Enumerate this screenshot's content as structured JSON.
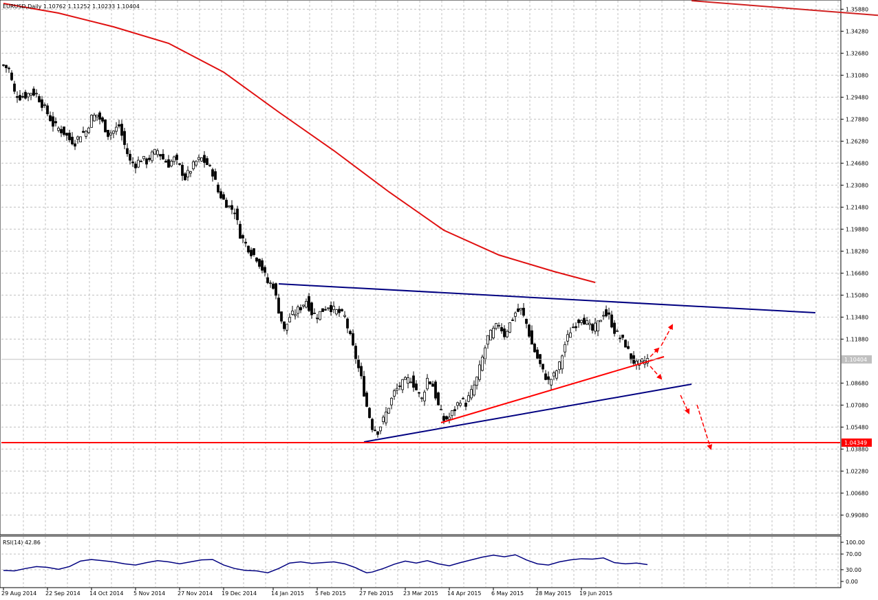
{
  "chart_data": {
    "type": "candlestick",
    "symbol_info": "EURUSD,Daily  1.10762 1.11252 1.10233 1.10404",
    "price_axis": {
      "ticks": [
        "1.35880",
        "1.34280",
        "1.32680",
        "1.31080",
        "1.29480",
        "1.27880",
        "1.26280",
        "1.24680",
        "1.23080",
        "1.21480",
        "1.19880",
        "1.18280",
        "1.16680",
        "1.15080",
        "1.13480",
        "1.11880",
        "1.08680",
        "1.07080",
        "1.05480",
        "1.03880",
        "1.02280",
        "1.00680",
        "0.99080"
      ],
      "tick_values": [
        1.3588,
        1.3428,
        1.3268,
        1.3108,
        1.2948,
        1.2788,
        1.2628,
        1.2468,
        1.2308,
        1.2148,
        1.1988,
        1.1828,
        1.1668,
        1.1508,
        1.1348,
        1.1188,
        1.0868,
        1.0708,
        1.0548,
        1.0388,
        1.0228,
        1.0068,
        0.9908
      ],
      "range": [
        0.977,
        1.365
      ],
      "current_price_label": "1.10404",
      "current_price": 1.10404,
      "support_label": "1.04349",
      "support_price": 1.04349
    },
    "time_axis": {
      "labels": [
        "29 Aug 2014",
        "22 Sep 2014",
        "14 Oct 2014",
        "5 Nov 2014",
        "27 Nov 2014",
        "19 Dec 2014",
        "14 Jan 2015",
        "5 Feb 2015",
        "27 Feb 2015",
        "23 Mar 2015",
        "14 Apr 2015",
        "6 May 2015",
        "28 May 2015",
        "19 Jun 2015"
      ],
      "label_bar_index": [
        0,
        16,
        32,
        48,
        64,
        80,
        98,
        114,
        130,
        146,
        162,
        178,
        194,
        210
      ],
      "total_bars": 300
    },
    "candles_close_path": [
      [
        0,
        1.318
      ],
      [
        2,
        1.315
      ],
      [
        4,
        1.298
      ],
      [
        6,
        1.295
      ],
      [
        8,
        1.296
      ],
      [
        10,
        1.2985
      ],
      [
        12,
        1.297
      ],
      [
        14,
        1.29
      ],
      [
        16,
        1.283
      ],
      [
        18,
        1.275
      ],
      [
        20,
        1.272
      ],
      [
        22,
        1.269
      ],
      [
        24,
        1.264
      ],
      [
        26,
        1.262
      ],
      [
        28,
        1.268
      ],
      [
        30,
        1.27
      ],
      [
        32,
        1.28
      ],
      [
        34,
        1.282
      ],
      [
        36,
        1.276
      ],
      [
        38,
        1.268
      ],
      [
        40,
        1.27
      ],
      [
        42,
        1.274
      ],
      [
        44,
        1.26
      ],
      [
        46,
        1.248
      ],
      [
        48,
        1.246
      ],
      [
        50,
        1.25
      ],
      [
        52,
        1.248
      ],
      [
        54,
        1.253
      ],
      [
        56,
        1.256
      ],
      [
        58,
        1.25
      ],
      [
        60,
        1.246
      ],
      [
        62,
        1.25
      ],
      [
        64,
        1.244
      ],
      [
        66,
        1.236
      ],
      [
        68,
        1.242
      ],
      [
        70,
        1.248
      ],
      [
        72,
        1.25
      ],
      [
        74,
        1.246
      ],
      [
        76,
        1.24
      ],
      [
        78,
        1.226
      ],
      [
        80,
        1.22
      ],
      [
        82,
        1.215
      ],
      [
        84,
        1.212
      ],
      [
        86,
        1.195
      ],
      [
        88,
        1.188
      ],
      [
        90,
        1.182
      ],
      [
        92,
        1.178
      ],
      [
        94,
        1.17
      ],
      [
        96,
        1.16
      ],
      [
        98,
        1.158
      ],
      [
        100,
        1.14
      ],
      [
        102,
        1.125
      ],
      [
        104,
        1.135
      ],
      [
        106,
        1.138
      ],
      [
        108,
        1.142
      ],
      [
        110,
        1.147
      ],
      [
        112,
        1.138
      ],
      [
        114,
        1.136
      ],
      [
        116,
        1.14
      ],
      [
        118,
        1.143
      ],
      [
        120,
        1.14
      ],
      [
        122,
        1.138
      ],
      [
        124,
        1.135
      ],
      [
        126,
        1.12
      ],
      [
        128,
        1.105
      ],
      [
        130,
        1.09
      ],
      [
        132,
        1.07
      ],
      [
        134,
        1.055
      ],
      [
        136,
        1.052
      ],
      [
        138,
        1.06
      ],
      [
        140,
        1.07
      ],
      [
        142,
        1.08
      ],
      [
        144,
        1.085
      ],
      [
        146,
        1.088
      ],
      [
        148,
        1.09
      ],
      [
        150,
        1.082
      ],
      [
        152,
        1.075
      ],
      [
        154,
        1.09
      ],
      [
        156,
        1.085
      ],
      [
        158,
        1.07
      ],
      [
        160,
        1.06
      ],
      [
        162,
        1.062
      ],
      [
        164,
        1.068
      ],
      [
        166,
        1.075
      ],
      [
        168,
        1.072
      ],
      [
        170,
        1.08
      ],
      [
        172,
        1.09
      ],
      [
        174,
        1.105
      ],
      [
        176,
        1.12
      ],
      [
        178,
        1.125
      ],
      [
        180,
        1.13
      ],
      [
        182,
        1.122
      ],
      [
        184,
        1.13
      ],
      [
        186,
        1.138
      ],
      [
        188,
        1.14
      ],
      [
        190,
        1.13
      ],
      [
        192,
        1.115
      ],
      [
        194,
        1.105
      ],
      [
        196,
        1.095
      ],
      [
        198,
        1.088
      ],
      [
        200,
        1.092
      ],
      [
        202,
        1.1
      ],
      [
        204,
        1.115
      ],
      [
        206,
        1.125
      ],
      [
        208,
        1.13
      ],
      [
        210,
        1.135
      ],
      [
        212,
        1.13
      ],
      [
        214,
        1.125
      ],
      [
        216,
        1.13
      ],
      [
        218,
        1.138
      ],
      [
        220,
        1.135
      ],
      [
        222,
        1.125
      ],
      [
        224,
        1.12
      ],
      [
        226,
        1.115
      ],
      [
        228,
        1.105
      ],
      [
        230,
        1.1
      ],
      [
        232,
        1.102
      ],
      [
        234,
        1.104
      ]
    ],
    "moving_average": [
      [
        0,
        1.363
      ],
      [
        20,
        1.356
      ],
      [
        40,
        1.346
      ],
      [
        60,
        1.334
      ],
      [
        80,
        1.313
      ],
      [
        100,
        1.284
      ],
      [
        120,
        1.256
      ],
      [
        140,
        1.226
      ],
      [
        160,
        1.198
      ],
      [
        180,
        1.18
      ],
      [
        200,
        1.168
      ],
      [
        215,
        1.16
      ]
    ],
    "lines": [
      {
        "name": "resistance",
        "color": "#000080",
        "from": [
          100,
          1.159
        ],
        "to": [
          295,
          1.138
        ]
      },
      {
        "name": "support-blue",
        "color": "#000080",
        "from": [
          131,
          1.044
        ],
        "to": [
          250,
          1.086
        ]
      },
      {
        "name": "support-red",
        "color": "#ff0000",
        "from": [
          159,
          1.058
        ],
        "to": [
          240,
          1.106
        ]
      },
      {
        "name": "long-trend",
        "color": "#d02020",
        "from": [
          250,
          1.365
        ],
        "to": [
          320,
          1.354
        ]
      }
    ],
    "rsi": {
      "label": "RSI(14) 42.86",
      "ticks": [
        "100.00",
        "70.00",
        "30.00",
        "0.00"
      ],
      "tick_values": [
        100,
        70,
        30,
        0
      ],
      "values": [
        [
          0,
          28
        ],
        [
          4,
          27
        ],
        [
          8,
          33
        ],
        [
          12,
          38
        ],
        [
          16,
          36
        ],
        [
          20,
          31
        ],
        [
          24,
          38
        ],
        [
          28,
          52
        ],
        [
          32,
          56
        ],
        [
          36,
          53
        ],
        [
          40,
          50
        ],
        [
          44,
          45
        ],
        [
          48,
          42
        ],
        [
          52,
          48
        ],
        [
          56,
          53
        ],
        [
          60,
          50
        ],
        [
          64,
          45
        ],
        [
          68,
          50
        ],
        [
          72,
          55
        ],
        [
          76,
          56
        ],
        [
          80,
          42
        ],
        [
          84,
          33
        ],
        [
          88,
          28
        ],
        [
          92,
          27
        ],
        [
          96,
          22
        ],
        [
          100,
          33
        ],
        [
          104,
          47
        ],
        [
          108,
          50
        ],
        [
          112,
          46
        ],
        [
          116,
          48
        ],
        [
          120,
          50
        ],
        [
          124,
          45
        ],
        [
          128,
          35
        ],
        [
          130,
          28
        ],
        [
          132,
          22
        ],
        [
          134,
          24
        ],
        [
          138,
          33
        ],
        [
          142,
          44
        ],
        [
          146,
          52
        ],
        [
          150,
          47
        ],
        [
          154,
          53
        ],
        [
          158,
          45
        ],
        [
          162,
          40
        ],
        [
          166,
          48
        ],
        [
          170,
          55
        ],
        [
          174,
          62
        ],
        [
          178,
          67
        ],
        [
          182,
          63
        ],
        [
          186,
          68
        ],
        [
          190,
          55
        ],
        [
          194,
          45
        ],
        [
          198,
          42
        ],
        [
          202,
          50
        ],
        [
          206,
          55
        ],
        [
          210,
          58
        ],
        [
          214,
          57
        ],
        [
          218,
          60
        ],
        [
          222,
          48
        ],
        [
          226,
          45
        ],
        [
          230,
          47
        ],
        [
          234,
          43
        ]
      ]
    }
  }
}
